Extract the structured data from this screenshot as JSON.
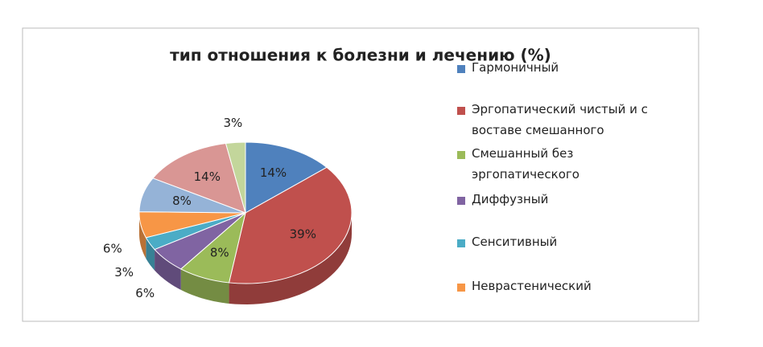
{
  "chart_data": {
    "type": "pie",
    "title": "тип отношения к болезни и лечению (%)",
    "categories": [
      "Гармоничный",
      "Эргопатический чистый и с воставе смешанного",
      "Смешанный  без эргопатического",
      "Диффузный",
      "Сенситивный",
      "Неврастенический",
      null,
      null,
      null
    ],
    "values": [
      14,
      39,
      8,
      6,
      3,
      6,
      8,
      14,
      3
    ],
    "value_labels": [
      "14%",
      "39%",
      "8%",
      "6%",
      "3%",
      "6%",
      "8%",
      "14%",
      "3%"
    ],
    "colors": [
      "#4f81bd",
      "#c0504d",
      "#9bbb59",
      "#8064a2",
      "#4bacc6",
      "#f79646",
      "#95b3d7",
      "#d99694",
      "#c3d69b"
    ],
    "legend": "right"
  }
}
